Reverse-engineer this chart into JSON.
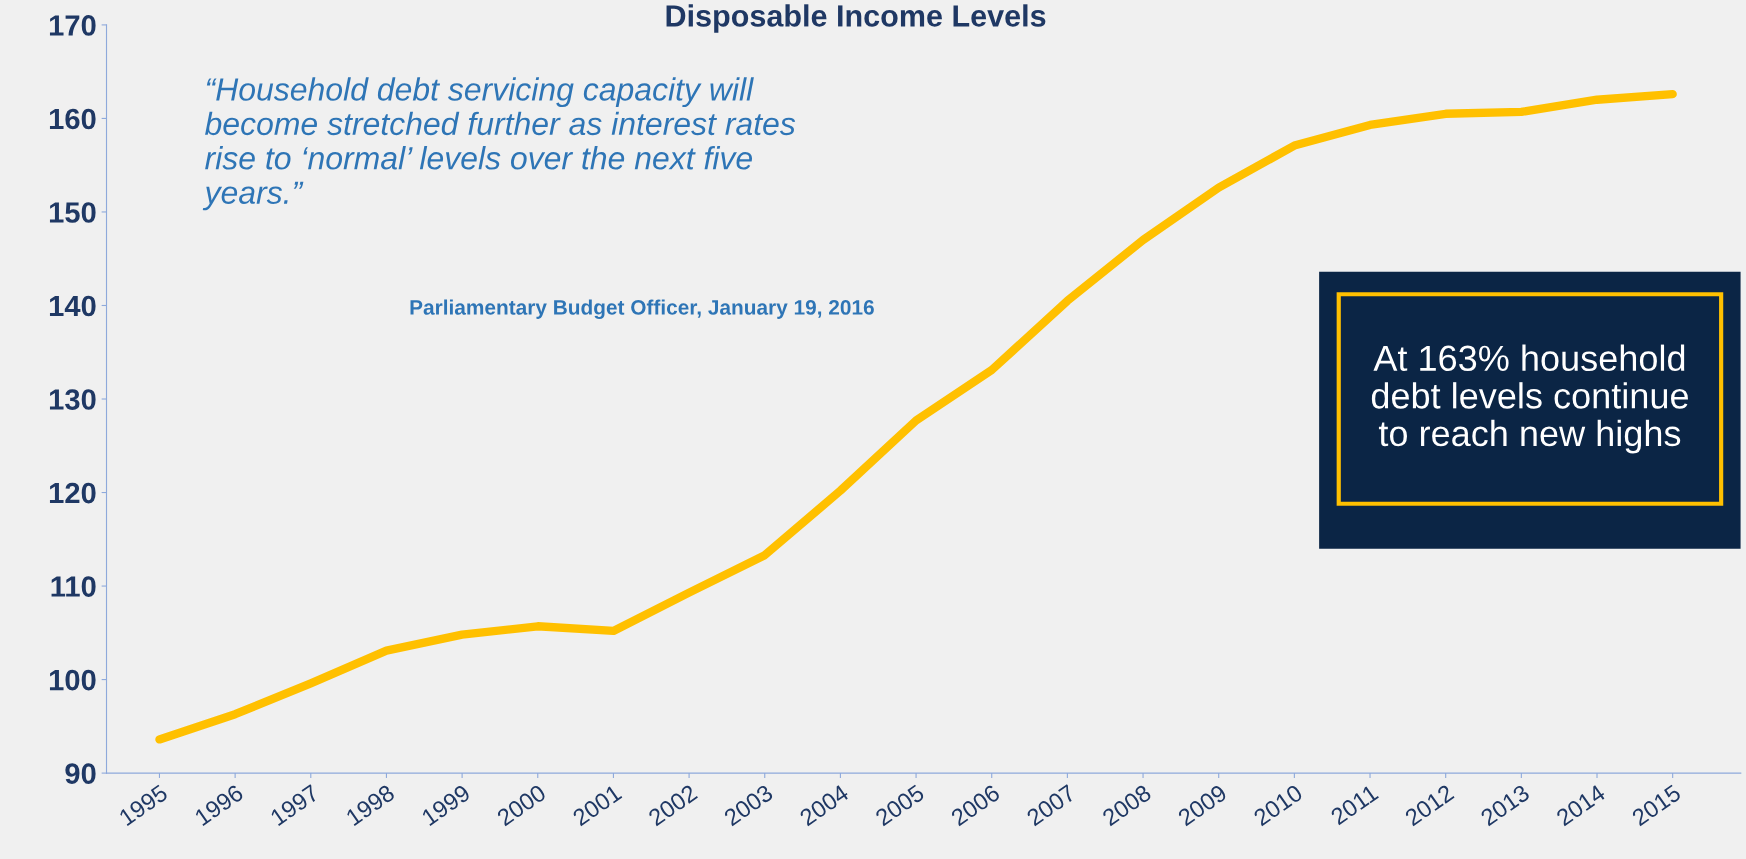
{
  "chart_data": {
    "type": "line",
    "title": "Disposable Income Levels",
    "categories": [
      "1995",
      "1996",
      "1997",
      "1998",
      "1999",
      "2000",
      "2001",
      "2002",
      "2003",
      "2004",
      "2005",
      "2006",
      "2007",
      "2008",
      "2009",
      "2010",
      "2011",
      "2012",
      "2013",
      "2014",
      "2015"
    ],
    "series": [
      {
        "color": "#ffc000",
        "values": [
          93.6,
          96.3,
          99.6,
          103.1,
          104.8,
          105.7,
          105.2,
          109.3,
          113.3,
          120.2,
          127.7,
          133.1,
          140.5,
          147.0,
          152.6,
          157.1,
          159.3,
          160.5,
          160.7,
          162.0,
          162.6
        ]
      }
    ],
    "ylim": [
      90,
      170
    ],
    "yticks": [
      90,
      100,
      110,
      120,
      130,
      140,
      150,
      160,
      170
    ],
    "grid": false,
    "legend": false,
    "marker": "none",
    "line_style": "solid",
    "annotations": [
      "“Household debt servicing capacity will\nbecome stretched further as interest rates\nrise to ‘normal’ levels over the next five\nyears.”",
      "Parliamentary Budget Officer, January 19, 2016",
      "At 163% household\ndebt levels continue\nto reach new highs"
    ]
  }
}
